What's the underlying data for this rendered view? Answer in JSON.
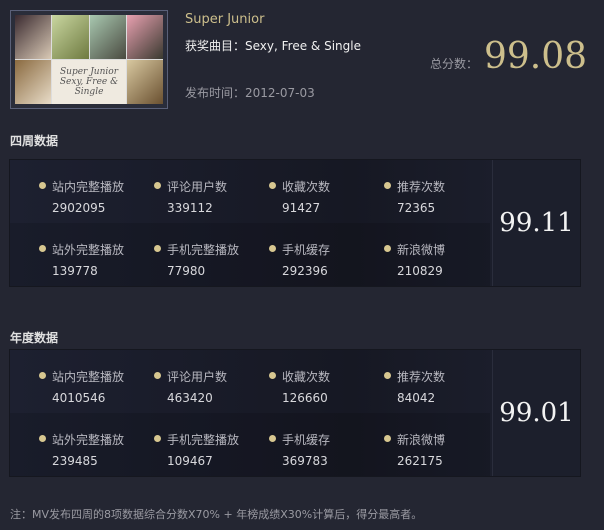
{
  "header": {
    "cover_text": "Super Junior Sexy, Free & Single",
    "artist": "Super Junior",
    "song": "获奖曲目：Sexy, Free & Single",
    "release_date": "发布时间：2012-07-03",
    "total_label": "总分数：",
    "total_score": "99.08"
  },
  "four_weeks": {
    "title": "四周数据",
    "score": "99.11",
    "items": [
      {
        "label": "站内完整播放",
        "value": "2902095"
      },
      {
        "label": "评论用户数",
        "value": "339112"
      },
      {
        "label": "收藏次数",
        "value": "91427"
      },
      {
        "label": "推荐次数",
        "value": "72365"
      },
      {
        "label": "站外完整播放",
        "value": "139778"
      },
      {
        "label": "手机完整播放",
        "value": "77980"
      },
      {
        "label": "手机缓存",
        "value": "292396"
      },
      {
        "label": "新浪微博",
        "value": "210829"
      }
    ]
  },
  "yearly": {
    "title": "年度数据",
    "score": "99.01",
    "items": [
      {
        "label": "站内完整播放",
        "value": "4010546"
      },
      {
        "label": "评论用户数",
        "value": "463420"
      },
      {
        "label": "收藏次数",
        "value": "126660"
      },
      {
        "label": "推荐次数",
        "value": "84042"
      },
      {
        "label": "站外完整播放",
        "value": "239485"
      },
      {
        "label": "手机完整播放",
        "value": "109467"
      },
      {
        "label": "手机缓存",
        "value": "369783"
      },
      {
        "label": "新浪微博",
        "value": "262175"
      }
    ]
  },
  "note": "注：MV发布四周的8项数据综合分数X70% + 年榜成绩X30%计算后，得分最高者。",
  "colors": {
    "background": "#242632",
    "accent_gold": "#cdbf8c",
    "bullet": "#d7c790"
  }
}
